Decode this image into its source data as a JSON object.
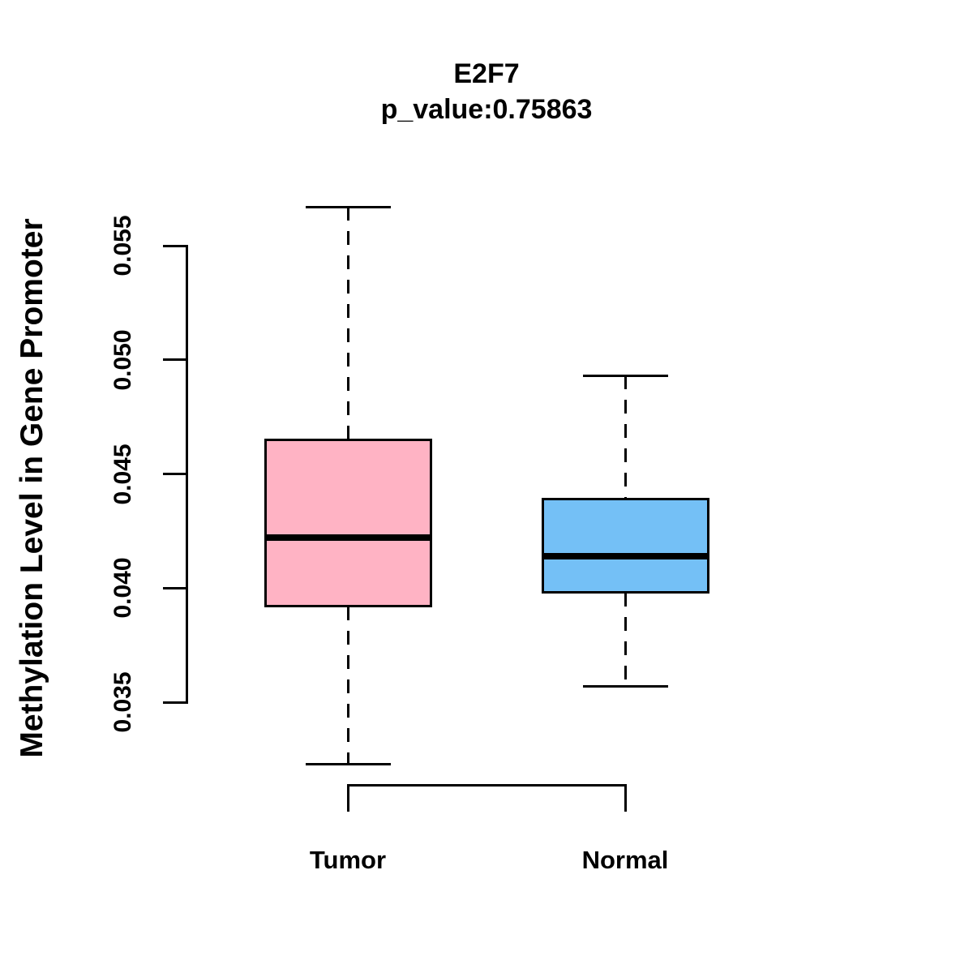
{
  "chart_data": {
    "type": "boxplot",
    "title": "E2F7",
    "subtitle": "p_value:0.75863",
    "ylabel": "Methylation Level in Gene Promoter",
    "xlabel": "",
    "categories": [
      "Tumor",
      "Normal"
    ],
    "ytick_values": [
      0.055,
      0.05,
      0.045,
      0.04,
      0.035
    ],
    "ytick_labels": [
      "0.055",
      "0.050",
      "0.045",
      "0.040",
      "0.035"
    ],
    "ylim": [
      0.0315,
      0.0575
    ],
    "grid": false,
    "legend": "none",
    "line_color": "#000000",
    "background_color": "#ffffff",
    "series": [
      {
        "name": "Tumor",
        "fill_color": "#ffb3c4",
        "whisker_low": 0.0323,
        "q1": 0.0392,
        "median": 0.0422,
        "q3": 0.0465,
        "whisker_high": 0.0567
      },
      {
        "name": "Normal",
        "fill_color": "#74c0f6",
        "whisker_low": 0.0357,
        "q1": 0.0398,
        "median": 0.0414,
        "q3": 0.0439,
        "whisker_high": 0.0493
      }
    ]
  }
}
